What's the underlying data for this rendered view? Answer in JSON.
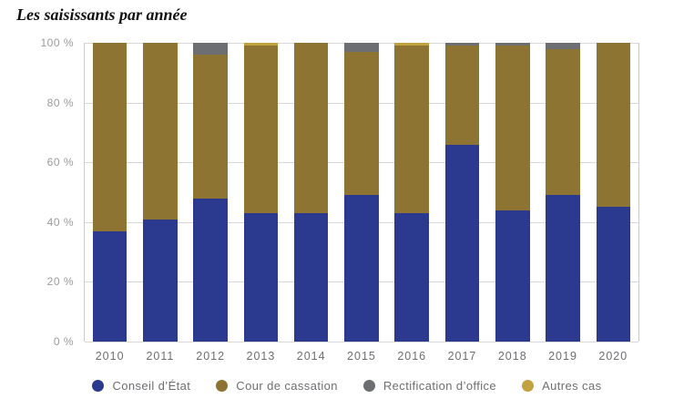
{
  "chart_data": {
    "type": "bar",
    "stacked": true,
    "title": "Les saisissants par année",
    "categories": [
      "2010",
      "2011",
      "2012",
      "2013",
      "2014",
      "2015",
      "2016",
      "2017",
      "2018",
      "2019",
      "2020"
    ],
    "series": [
      {
        "name": "Conseil d’État",
        "color": "#2b3a8e",
        "values": [
          37,
          41,
          48,
          43,
          43,
          49,
          43,
          66,
          44,
          49,
          45
        ]
      },
      {
        "name": "Cour de cassation",
        "color": "#8e7433",
        "values": [
          63,
          59,
          48,
          56,
          57,
          48,
          56,
          33,
          55,
          49,
          55
        ]
      },
      {
        "name": "Rectification d’office",
        "color": "#6d6e71",
        "values": [
          0,
          0,
          4,
          0,
          0,
          3,
          0,
          1,
          1,
          2,
          0
        ]
      },
      {
        "name": "Autres cas",
        "color": "#c2a23f",
        "values": [
          0,
          0,
          0,
          1,
          0,
          0,
          1,
          0,
          0,
          0,
          0
        ]
      }
    ],
    "ylim": [
      0,
      100
    ],
    "yticks": [
      {
        "value": 0,
        "label": "0 %"
      },
      {
        "value": 20,
        "label": "20 %"
      },
      {
        "value": 40,
        "label": "40 %"
      },
      {
        "value": 60,
        "label": "60 %"
      },
      {
        "value": 80,
        "label": "80 %"
      },
      {
        "value": 100,
        "label": "100 %"
      }
    ],
    "grid": "horizontal",
    "legend_position": "bottom"
  }
}
